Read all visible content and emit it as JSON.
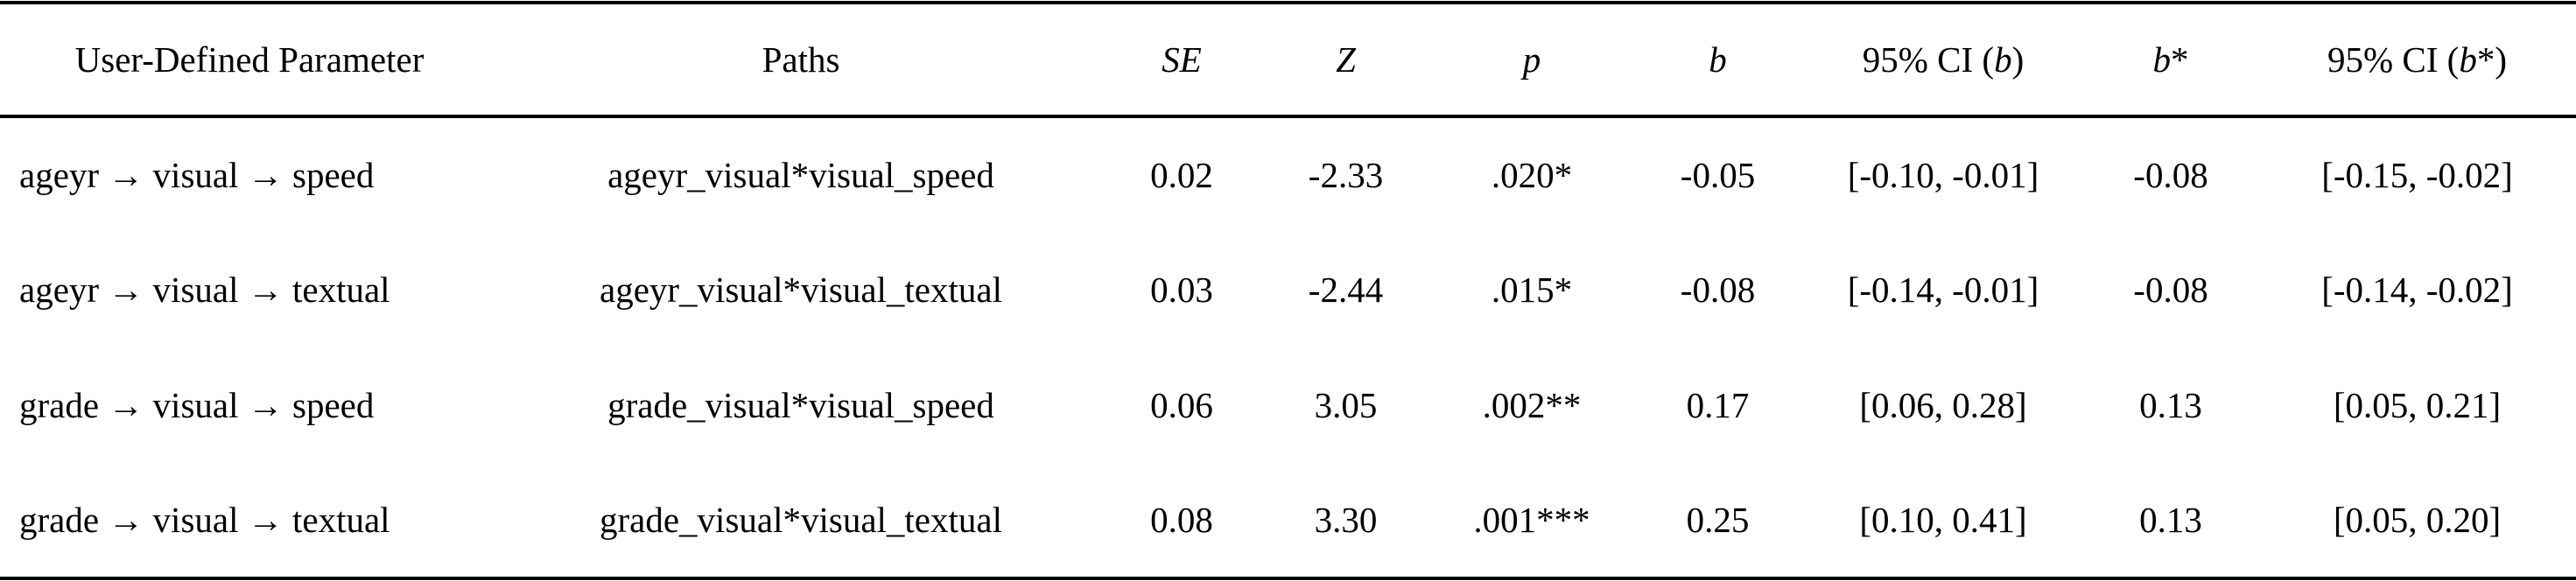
{
  "table": {
    "headers": {
      "param": "User-Defined Parameter",
      "paths": "Paths",
      "se": "SE",
      "z": "Z",
      "p": "p",
      "b": "b",
      "ci_b_prefix": "95% CI (",
      "ci_b_var": "b",
      "ci_b_suffix": ")",
      "bstar_var": "b",
      "bstar_suffix": "*",
      "ci_bstar_prefix": "95% CI (",
      "ci_bstar_var": "b",
      "ci_bstar_suffix": "*)"
    },
    "rows": [
      {
        "param": "ageyr → visual → speed",
        "paths": "ageyr_visual*visual_speed",
        "se": "0.02",
        "z": "-2.33",
        "p": ".020*",
        "b": "-0.05",
        "ci_b": "[-0.10, -0.01]",
        "bstar": "-0.08",
        "ci_bstar": "[-0.15, -0.02]"
      },
      {
        "param": "ageyr → visual → textual",
        "paths": "ageyr_visual*visual_textual",
        "se": "0.03",
        "z": "-2.44",
        "p": ".015*",
        "b": "-0.08",
        "ci_b": "[-0.14, -0.01]",
        "bstar": "-0.08",
        "ci_bstar": "[-0.14, -0.02]"
      },
      {
        "param": "grade → visual → speed",
        "paths": "grade_visual*visual_speed",
        "se": "0.06",
        "z": "3.05",
        "p": ".002**",
        "b": "0.17",
        "ci_b": "[0.06, 0.28]",
        "bstar": "0.13",
        "ci_bstar": "[0.05, 0.21]"
      },
      {
        "param": "grade → visual → textual",
        "paths": "grade_visual*visual_textual",
        "se": "0.08",
        "z": "3.30",
        "p": ".001***",
        "b": "0.25",
        "ci_b": "[0.10, 0.41]",
        "bstar": "0.13",
        "ci_bstar": "[0.05, 0.20]"
      }
    ]
  }
}
